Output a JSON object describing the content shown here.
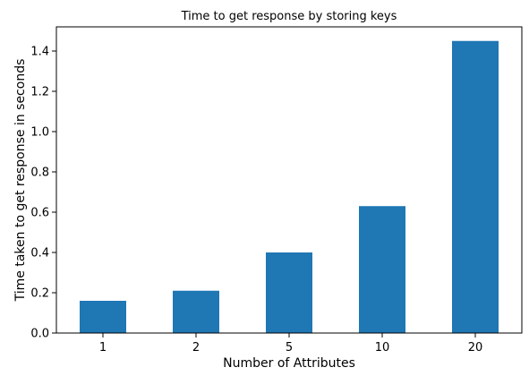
{
  "chart_data": {
    "type": "bar",
    "title": "Time to get response by storing keys",
    "xlabel": "Number of Attributes",
    "ylabel": "Time taken to get response in seconds",
    "categories": [
      "1",
      "2",
      "5",
      "10",
      "20"
    ],
    "values": [
      0.16,
      0.21,
      0.4,
      0.63,
      1.45
    ],
    "ylim": [
      0,
      1.52
    ],
    "yticks": [
      0.0,
      0.2,
      0.4,
      0.6,
      0.8,
      1.0,
      1.2,
      1.4
    ],
    "ytick_labels": [
      "0.0",
      "0.2",
      "0.4",
      "0.6",
      "0.8",
      "1.0",
      "1.2",
      "1.4"
    ],
    "bar_color": "#1f77b4",
    "grid": false,
    "legend": "none"
  }
}
